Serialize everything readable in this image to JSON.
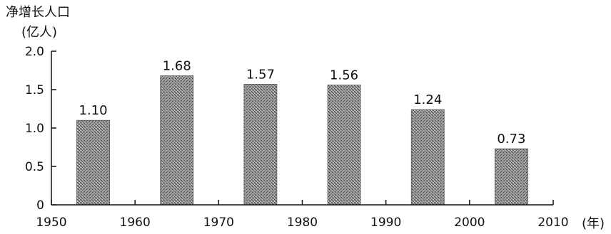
{
  "chart_data": {
    "type": "bar",
    "ylabel_line1": "净增长人口",
    "ylabel_line2": "(亿人)",
    "xlabel": "(年)",
    "ylim": [
      0,
      2.0
    ],
    "xlim": [
      1950,
      2010
    ],
    "y_ticks": [
      "0",
      "0.5",
      "1.0",
      "1.5",
      "2.0"
    ],
    "x_ticks": [
      "1950",
      "1960",
      "1970",
      "1980",
      "1990",
      "2000",
      "2010"
    ],
    "bars": [
      {
        "x": 1955,
        "value": 1.1,
        "label": "1.10"
      },
      {
        "x": 1965,
        "value": 1.68,
        "label": "1.68"
      },
      {
        "x": 1975,
        "value": 1.57,
        "label": "1.57"
      },
      {
        "x": 1985,
        "value": 1.56,
        "label": "1.56"
      },
      {
        "x": 1995,
        "value": 1.24,
        "label": "1.24"
      },
      {
        "x": 2005,
        "value": 0.73,
        "label": "0.73"
      }
    ],
    "bar_color": "#8c8c8c",
    "grid": false
  }
}
